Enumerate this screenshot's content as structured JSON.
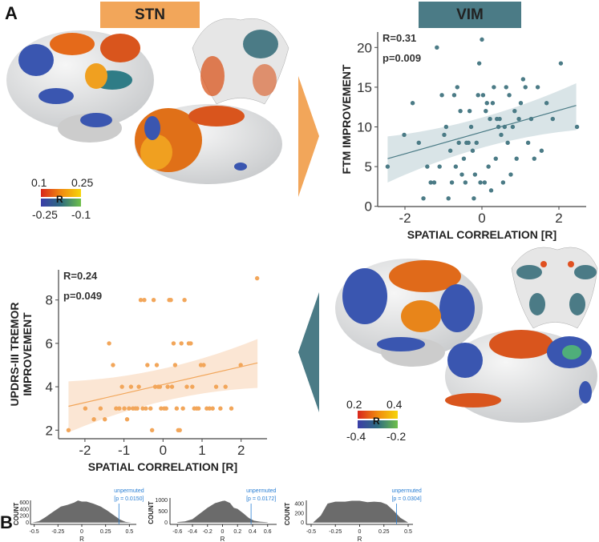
{
  "panel_labels": {
    "a": "A",
    "b": "B"
  },
  "headers": {
    "stn": "STN",
    "vim": "VIM"
  },
  "colors": {
    "stn": "#F2A65A",
    "vim": "#4B7B86",
    "hist": "#6b6b6b",
    "unpermuted": "#2a7fd4"
  },
  "colorbars": {
    "stn": {
      "pos_min": "0.1",
      "pos_max": "0.25",
      "neg_min": "-0.25",
      "neg_max": "-0.1",
      "label": "R"
    },
    "vim": {
      "pos_min": "0.2",
      "pos_max": "0.4",
      "neg_min": "-0.4",
      "neg_max": "-0.2",
      "label": "R"
    }
  },
  "chart_data": [
    {
      "id": "vim_scatter",
      "type": "scatter",
      "xlabel": "SPATIAL CORRELATION [R]",
      "ylabel": "FTM IMPROVEMENT",
      "annotation": [
        "R=0.31",
        "p=0.009"
      ],
      "xlim": [
        -2.5,
        2.5
      ],
      "ylim": [
        0,
        21
      ],
      "xticks": [
        -2,
        0,
        2
      ],
      "yticks": [
        0,
        5,
        10,
        15,
        20
      ],
      "fit": {
        "x": [
          -2.45,
          2.45
        ],
        "y": [
          6.0,
          12.7
        ],
        "ci_lower": [
          3.0,
          9.6
        ],
        "ci_upper": [
          8.8,
          15.5
        ]
      },
      "points": [
        [
          -2.45,
          5
        ],
        [
          -2.02,
          9
        ],
        [
          -1.8,
          13
        ],
        [
          -1.64,
          8
        ],
        [
          -1.52,
          1
        ],
        [
          -1.42,
          5
        ],
        [
          -1.33,
          3
        ],
        [
          -1.24,
          3
        ],
        [
          -1.17,
          20
        ],
        [
          -1.1,
          5
        ],
        [
          -1.04,
          14
        ],
        [
          -0.98,
          9
        ],
        [
          -0.93,
          10
        ],
        [
          -0.87,
          1
        ],
        [
          -0.82,
          7
        ],
        [
          -0.78,
          3
        ],
        [
          -0.72,
          14
        ],
        [
          -0.68,
          5
        ],
        [
          -0.64,
          15
        ],
        [
          -0.6,
          8
        ],
        [
          -0.56,
          12
        ],
        [
          -0.52,
          4
        ],
        [
          -0.47,
          6
        ],
        [
          -0.43,
          3
        ],
        [
          -0.4,
          8
        ],
        [
          -0.35,
          8
        ],
        [
          -0.32,
          12
        ],
        [
          -0.28,
          10
        ],
        [
          -0.24,
          7
        ],
        [
          -0.21,
          1
        ],
        [
          -0.18,
          4
        ],
        [
          -0.14,
          8
        ],
        [
          -0.1,
          14
        ],
        [
          -0.07,
          18
        ],
        [
          -0.04,
          3
        ],
        [
          0,
          21
        ],
        [
          0.03,
          14
        ],
        [
          0.07,
          3
        ],
        [
          0.1,
          12
        ],
        [
          0.13,
          13
        ],
        [
          0.17,
          5
        ],
        [
          0.21,
          11
        ],
        [
          0.24,
          2
        ],
        [
          0.28,
          13
        ],
        [
          0.31,
          15
        ],
        [
          0.36,
          6
        ],
        [
          0.39,
          11
        ],
        [
          0.43,
          10
        ],
        [
          0.46,
          11
        ],
        [
          0.5,
          9
        ],
        [
          0.55,
          3
        ],
        [
          0.59,
          10
        ],
        [
          0.63,
          15
        ],
        [
          0.67,
          8
        ],
        [
          0.71,
          14
        ],
        [
          0.75,
          4
        ],
        [
          0.8,
          10
        ],
        [
          0.85,
          12
        ],
        [
          0.9,
          6
        ],
        [
          0.96,
          11
        ],
        [
          1.01,
          13
        ],
        [
          1.07,
          16
        ],
        [
          1.13,
          15
        ],
        [
          1.2,
          8
        ],
        [
          1.28,
          11
        ],
        [
          1.36,
          6
        ],
        [
          1.45,
          15
        ],
        [
          1.55,
          7
        ],
        [
          1.68,
          13
        ],
        [
          1.84,
          11
        ],
        [
          2.05,
          18
        ],
        [
          2.47,
          10
        ]
      ]
    },
    {
      "id": "stn_scatter",
      "type": "scatter",
      "xlabel": "SPATIAL CORRELATION [R]",
      "ylabel": [
        "UPDRS-III TREMOR",
        "IMPROVEMENT"
      ],
      "annotation": [
        "R=0.24",
        "p=0.049"
      ],
      "xlim": [
        -2.5,
        2.5
      ],
      "ylim": [
        1.8,
        9.2
      ],
      "xticks": [
        -2,
        -1,
        0,
        1,
        2
      ],
      "yticks": [
        2,
        4,
        6,
        8
      ],
      "fit": {
        "x": [
          -2.42,
          2.42
        ],
        "y": [
          3.1,
          5.1
        ],
        "ci_lower": [
          1.9,
          3.95
        ],
        "ci_upper": [
          4.25,
          6.2
        ]
      },
      "points": [
        [
          -2.42,
          2
        ],
        [
          -1.99,
          3
        ],
        [
          -1.77,
          2.5
        ],
        [
          -1.6,
          3
        ],
        [
          -1.49,
          2.5
        ],
        [
          -1.38,
          6
        ],
        [
          -1.28,
          5
        ],
        [
          -1.2,
          3
        ],
        [
          -1.12,
          3
        ],
        [
          -1.05,
          4
        ],
        [
          -0.99,
          3
        ],
        [
          -0.92,
          2.5
        ],
        [
          -0.87,
          3
        ],
        [
          -0.82,
          4
        ],
        [
          -0.77,
          3
        ],
        [
          -0.71,
          3
        ],
        [
          -0.66,
          3
        ],
        [
          -0.62,
          4
        ],
        [
          -0.57,
          8
        ],
        [
          -0.52,
          3
        ],
        [
          -0.48,
          8
        ],
        [
          -0.44,
          3
        ],
        [
          -0.4,
          5
        ],
        [
          -0.32,
          3
        ],
        [
          -0.28,
          2
        ],
        [
          -0.24,
          8
        ],
        [
          -0.2,
          4
        ],
        [
          -0.16,
          5
        ],
        [
          -0.12,
          4
        ],
        [
          -0.08,
          4
        ],
        [
          -0.05,
          3
        ],
        [
          0.03,
          3
        ],
        [
          0.08,
          3
        ],
        [
          0.12,
          4
        ],
        [
          0.16,
          8
        ],
        [
          0.2,
          8
        ],
        [
          0.23,
          4
        ],
        [
          0.27,
          6
        ],
        [
          0.31,
          5
        ],
        [
          0.35,
          3
        ],
        [
          0.39,
          2
        ],
        [
          0.43,
          2
        ],
        [
          0.47,
          6
        ],
        [
          0.51,
          3
        ],
        [
          0.55,
          8
        ],
        [
          0.61,
          4
        ],
        [
          0.66,
          6
        ],
        [
          0.71,
          6
        ],
        [
          0.75,
          4
        ],
        [
          0.8,
          3
        ],
        [
          0.86,
          3
        ],
        [
          0.91,
          3
        ],
        [
          0.97,
          5
        ],
        [
          1.04,
          5
        ],
        [
          1.12,
          3
        ],
        [
          1.19,
          3
        ],
        [
          1.27,
          3
        ],
        [
          1.36,
          4
        ],
        [
          1.47,
          3
        ],
        [
          1.6,
          4
        ],
        [
          1.75,
          3
        ],
        [
          1.99,
          5
        ],
        [
          2.41,
          9
        ]
      ]
    },
    {
      "id": "hist1",
      "type": "area",
      "xlabel": "R",
      "ylabel": "COUNT",
      "xlim": [
        -0.55,
        0.55
      ],
      "ylim": [
        0,
        700
      ],
      "xticks": [
        "-0.5",
        "-0.25",
        "0",
        "0.25",
        "0.5"
      ],
      "xtick_values": [
        -0.5,
        -0.25,
        0,
        0.25,
        0.5
      ],
      "yticks": [
        0,
        200,
        400,
        600
      ],
      "x": [
        -0.52,
        -0.45,
        -0.38,
        -0.3,
        -0.22,
        -0.15,
        -0.08,
        -0.04,
        0,
        0.05,
        0.12,
        0.2,
        0.27,
        0.33,
        0.4,
        0.46,
        0.52
      ],
      "y": [
        0,
        40,
        160,
        320,
        470,
        520,
        590,
        650,
        620,
        620,
        560,
        470,
        350,
        230,
        90,
        20,
        0
      ],
      "unpermuted": {
        "value": 0.39,
        "label": "unpermuted",
        "p_label": "[p = 0.0150]"
      }
    },
    {
      "id": "hist2",
      "type": "area",
      "xlabel": "R",
      "ylabel": "COUNT",
      "xlim": [
        -0.65,
        0.65
      ],
      "ylim": [
        0,
        1050
      ],
      "xticks": [
        "-0.6",
        "-0.4",
        "-0.2",
        "0",
        "0.2",
        "0.4",
        "0.6"
      ],
      "xtick_values": [
        -0.6,
        -0.4,
        -0.2,
        0,
        0.2,
        0.4,
        0.6
      ],
      "yticks": [
        0,
        500,
        1000
      ],
      "x": [
        -0.6,
        -0.5,
        -0.4,
        -0.3,
        -0.2,
        -0.1,
        0,
        0.03,
        0.1,
        0.15,
        0.2,
        0.28,
        0.35,
        0.42,
        0.5,
        0.6
      ],
      "y": [
        20,
        50,
        150,
        400,
        650,
        850,
        950,
        960,
        860,
        650,
        600,
        400,
        200,
        80,
        40,
        10
      ],
      "unpermuted": {
        "value": 0.38,
        "label": "unpermuted",
        "p_label": "[p = 0.0172]"
      }
    },
    {
      "id": "hist3",
      "type": "area",
      "xlabel": "R",
      "ylabel": "COUNT",
      "xlim": [
        -0.55,
        0.55
      ],
      "ylim": [
        0,
        500
      ],
      "xticks": [
        "-0.5",
        "-0.25",
        "0",
        "0.25",
        "0.5"
      ],
      "xtick_values": [
        -0.5,
        -0.25,
        0,
        0.25,
        0.5
      ],
      "yticks": [
        0,
        200,
        400
      ],
      "x": [
        -0.48,
        -0.4,
        -0.33,
        -0.25,
        -0.15,
        -0.08,
        0,
        0.08,
        0.15,
        0.22,
        0.28,
        0.35,
        0.42,
        0.5
      ],
      "y": [
        0,
        150,
        400,
        440,
        440,
        460,
        460,
        430,
        440,
        430,
        380,
        250,
        100,
        0
      ],
      "unpermuted": {
        "value": 0.38,
        "label": "unpermuted",
        "p_label": "[p = 0.0304]"
      }
    }
  ]
}
